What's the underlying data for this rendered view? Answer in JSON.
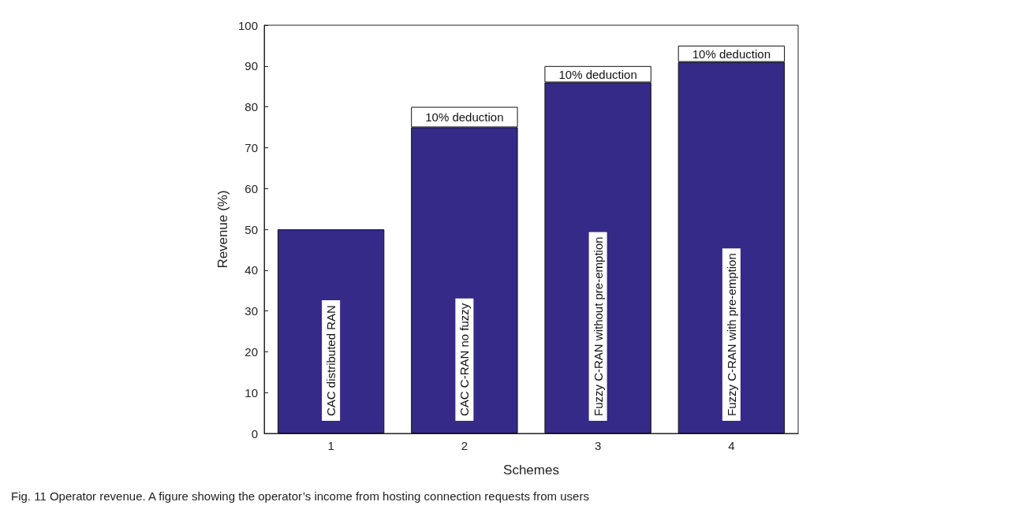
{
  "chart_data": {
    "type": "bar",
    "stacked": true,
    "xlabel": "Schemes",
    "ylabel": "Revenue (%)",
    "categories": [
      "1",
      "2",
      "3",
      "4"
    ],
    "series": [
      {
        "color": "#352a87",
        "values": [
          50,
          75,
          86,
          91
        ]
      },
      {
        "color": "#ffffff",
        "values": [
          null,
          5,
          4,
          4
        ]
      }
    ],
    "ylim": [
      0,
      100
    ],
    "yticks": [
      0,
      10,
      20,
      30,
      40,
      50,
      60,
      70,
      80,
      90,
      100
    ],
    "grid": false,
    "annotations": [
      "10% deduction",
      "10% deduction",
      "10% deduction",
      "CAC distributed RAN",
      "CAC C-RAN no fuzzy",
      "Fuzzy C-RAN without pre-emption",
      "Fuzzy C-RAN with pre-emption",
      "Fig. 11 Operator revenue. A figure showing the operator’s income from hosting connection requests from users"
    ]
  }
}
